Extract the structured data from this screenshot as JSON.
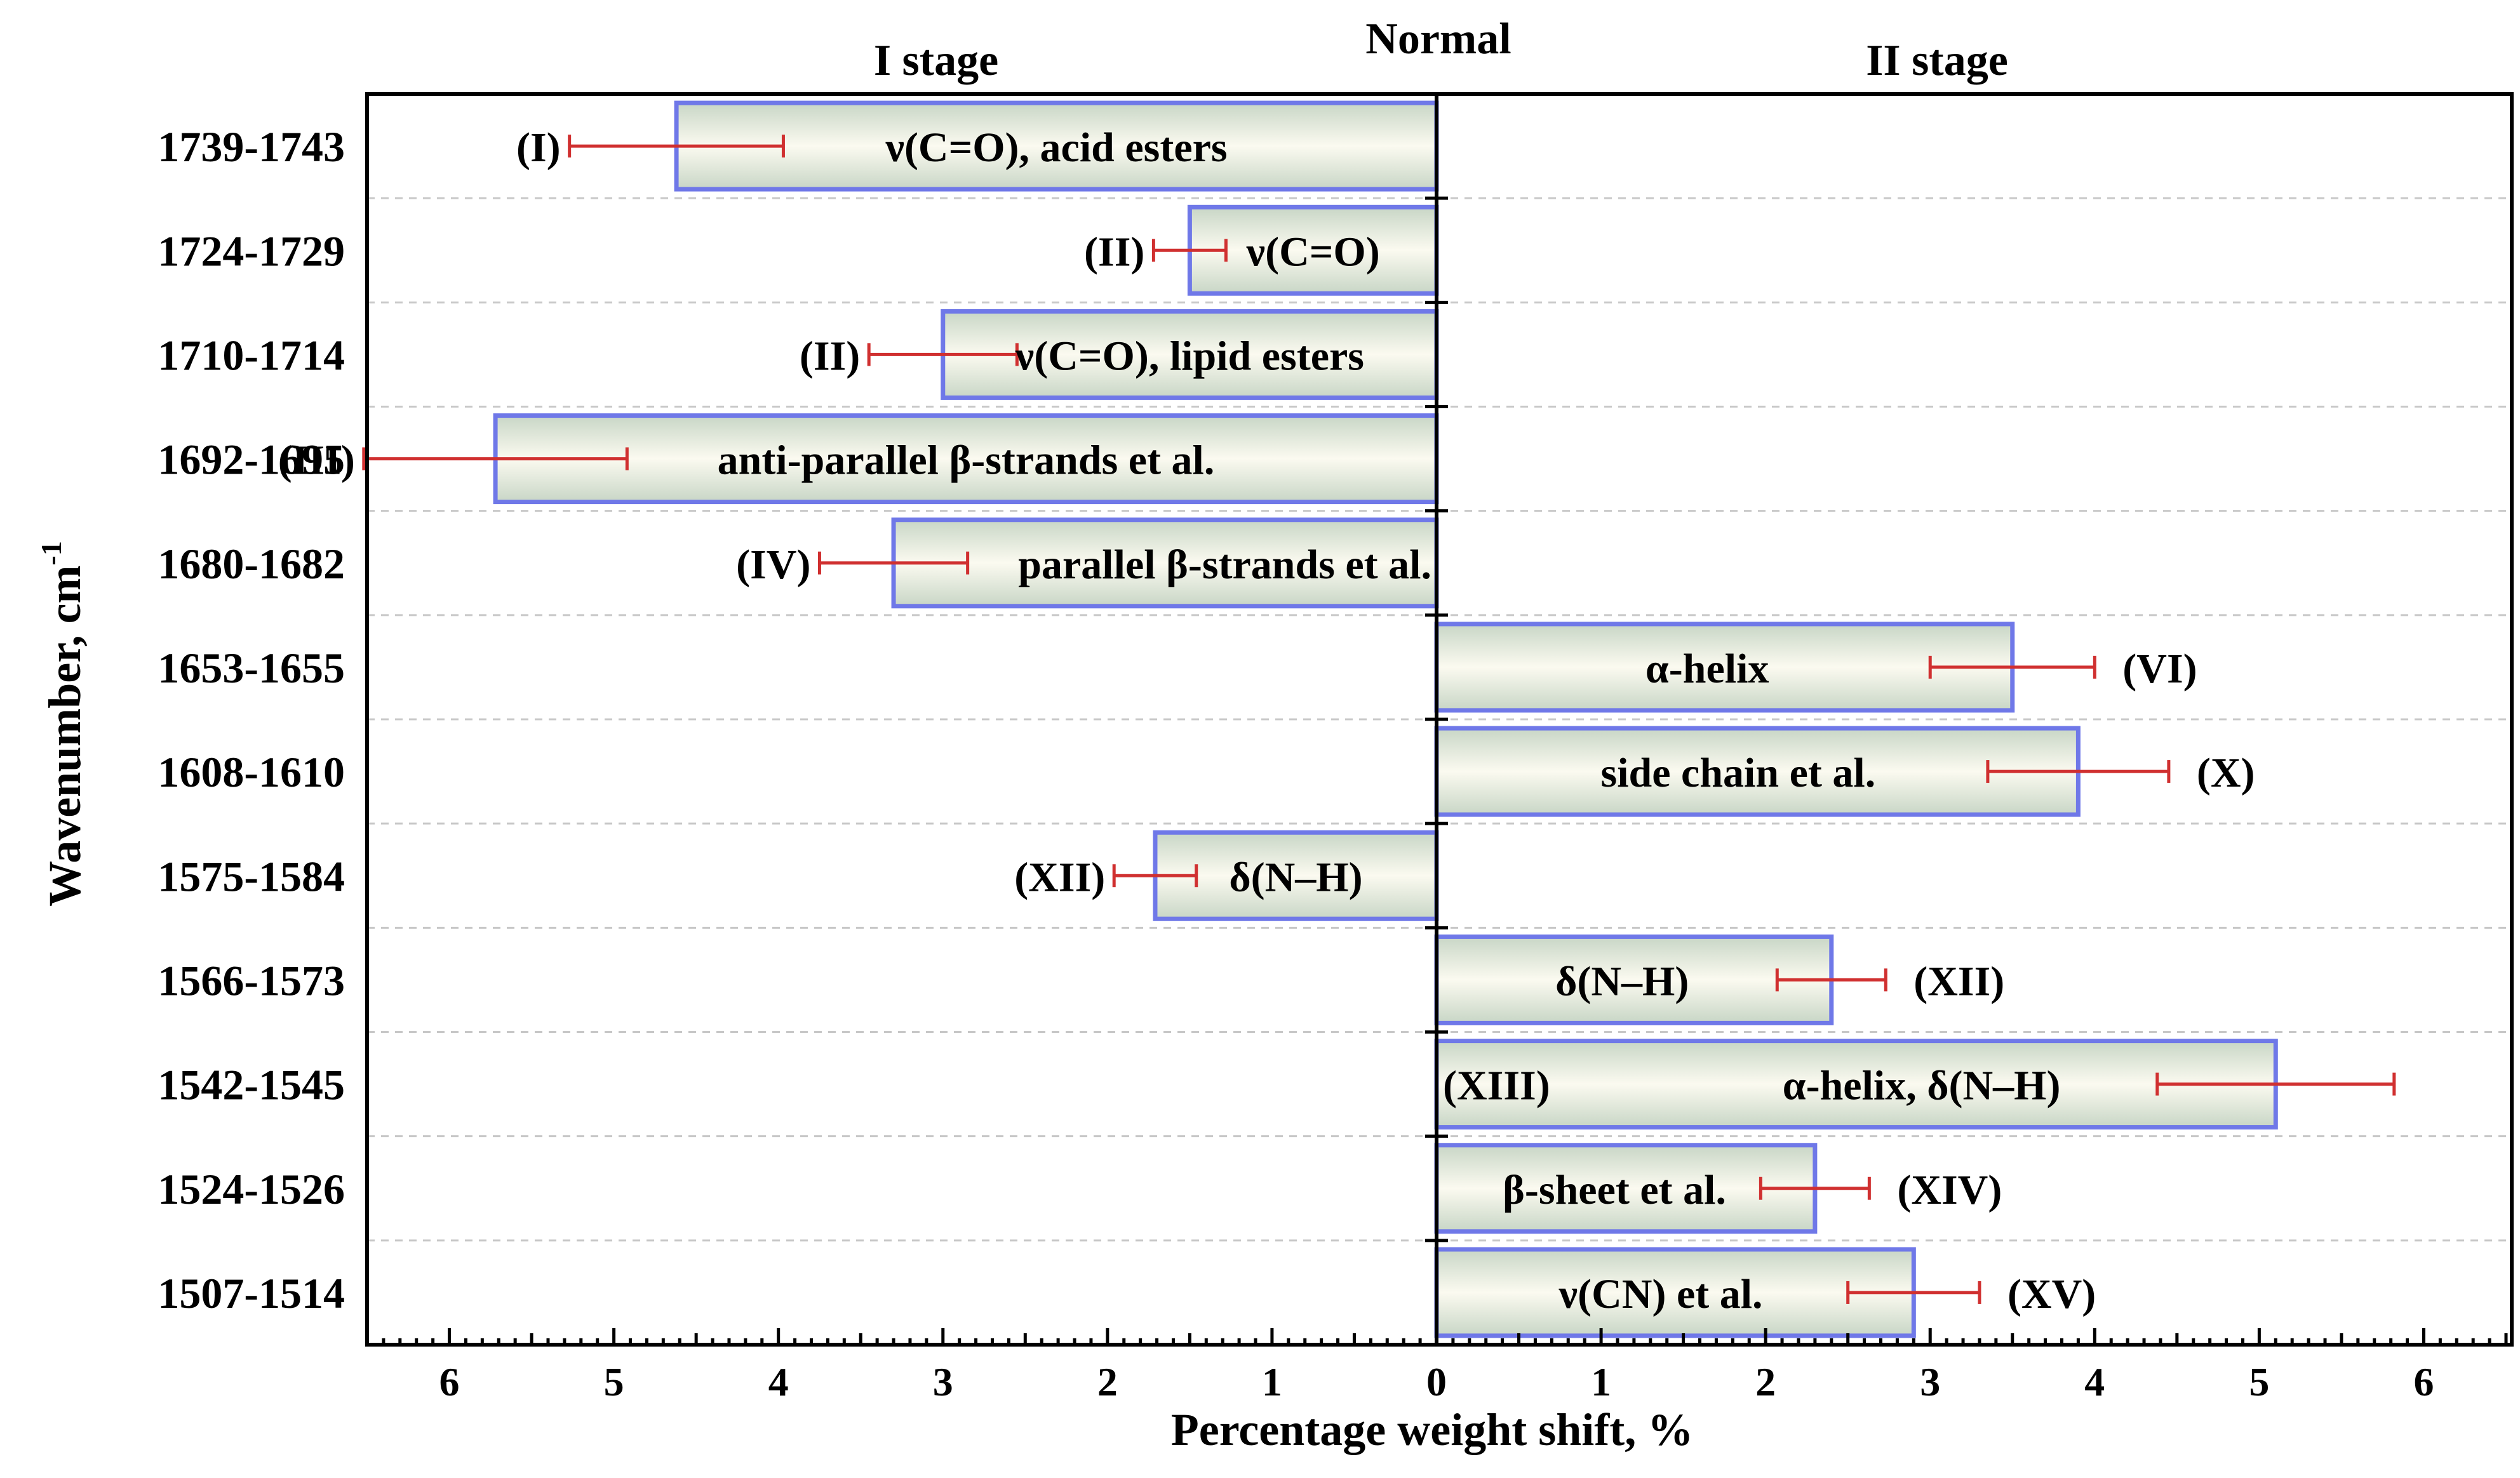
{
  "chart_data": {
    "type": "bar",
    "orientation": "horizontal",
    "title": "Normal",
    "left_section_label": "I stage",
    "right_section_label": "II stage",
    "xlabel": "Percentage weight shift, %",
    "ylabel": "Wavenumber, cm",
    "ylabel_superscript": "-1",
    "xlim": [
      -6.5,
      6.5
    ],
    "xticks": [
      -6,
      -5,
      -4,
      -3,
      -2,
      -1,
      0,
      1,
      2,
      3,
      4,
      5,
      6
    ],
    "xtick_labels": [
      "6",
      "5",
      "4",
      "3",
      "2",
      "1",
      "0",
      "1",
      "2",
      "3",
      "4",
      "5",
      "6"
    ],
    "grid": "horizontal dashed",
    "categories": [
      "1739-1743",
      "1724-1729",
      "1710-1714",
      "1692-1695",
      "1680-1682",
      "1653-1655",
      "1608-1610",
      "1575-1584",
      "1566-1573",
      "1542-1545",
      "1524-1526",
      "1507-1514"
    ],
    "bars": [
      {
        "category": "1739-1743",
        "stage": "I stage",
        "value": 4.62,
        "error": 0.65,
        "label": "ν(C=O), acid esters",
        "roman": "(I)"
      },
      {
        "category": "1724-1729",
        "stage": "I stage",
        "value": 1.5,
        "error": 0.22,
        "label": "ν(C=O)",
        "roman": "(II)"
      },
      {
        "category": "1710-1714",
        "stage": "I stage",
        "value": 3.0,
        "error": 0.45,
        "label": "ν(C=O), lipid esters",
        "roman": "(II)"
      },
      {
        "category": "1692-1695",
        "stage": "I stage",
        "value": 5.72,
        "error": 0.8,
        "label": "anti-parallel β-strands et al.",
        "roman": "(III)"
      },
      {
        "category": "1680-1682",
        "stage": "I stage",
        "value": 3.3,
        "error": 0.45,
        "label": "parallel β-strands et al.",
        "roman": "(IV)"
      },
      {
        "category": "1653-1655",
        "stage": "II stage",
        "value": 3.5,
        "error": 0.5,
        "label": "α-helix",
        "roman": "(VI)"
      },
      {
        "category": "1608-1610",
        "stage": "II stage",
        "value": 3.9,
        "error": 0.55,
        "label": "side chain et al.",
        "roman": "(X)"
      },
      {
        "category": "1575-1584",
        "stage": "I stage",
        "value": 1.71,
        "error": 0.25,
        "label": "δ(N–H)",
        "roman": "(XII)"
      },
      {
        "category": "1566-1573",
        "stage": "II stage",
        "value": 2.4,
        "error": 0.33,
        "label": "δ(N–H)",
        "roman": "(XII)"
      },
      {
        "category": "1542-1545",
        "stage": "II stage",
        "value": 5.1,
        "error": 0.72,
        "label": "α-helix, δ(N–H)",
        "roman": "(XIII)"
      },
      {
        "category": "1524-1526",
        "stage": "II stage",
        "value": 2.3,
        "error": 0.33,
        "label": "β-sheet et al.",
        "roman": "(XIV)"
      },
      {
        "category": "1507-1514",
        "stage": "II stage",
        "value": 2.9,
        "error": 0.4,
        "label": "ν(CN) et al.",
        "roman": "(XV)"
      }
    ],
    "colors": {
      "bar_fill_light": "#fbfaf0",
      "bar_fill_dark": "#c8d6c6",
      "bar_stroke": "#6f78e8",
      "error_bar": "#d03030",
      "gridline": "#c8c8c8"
    }
  }
}
